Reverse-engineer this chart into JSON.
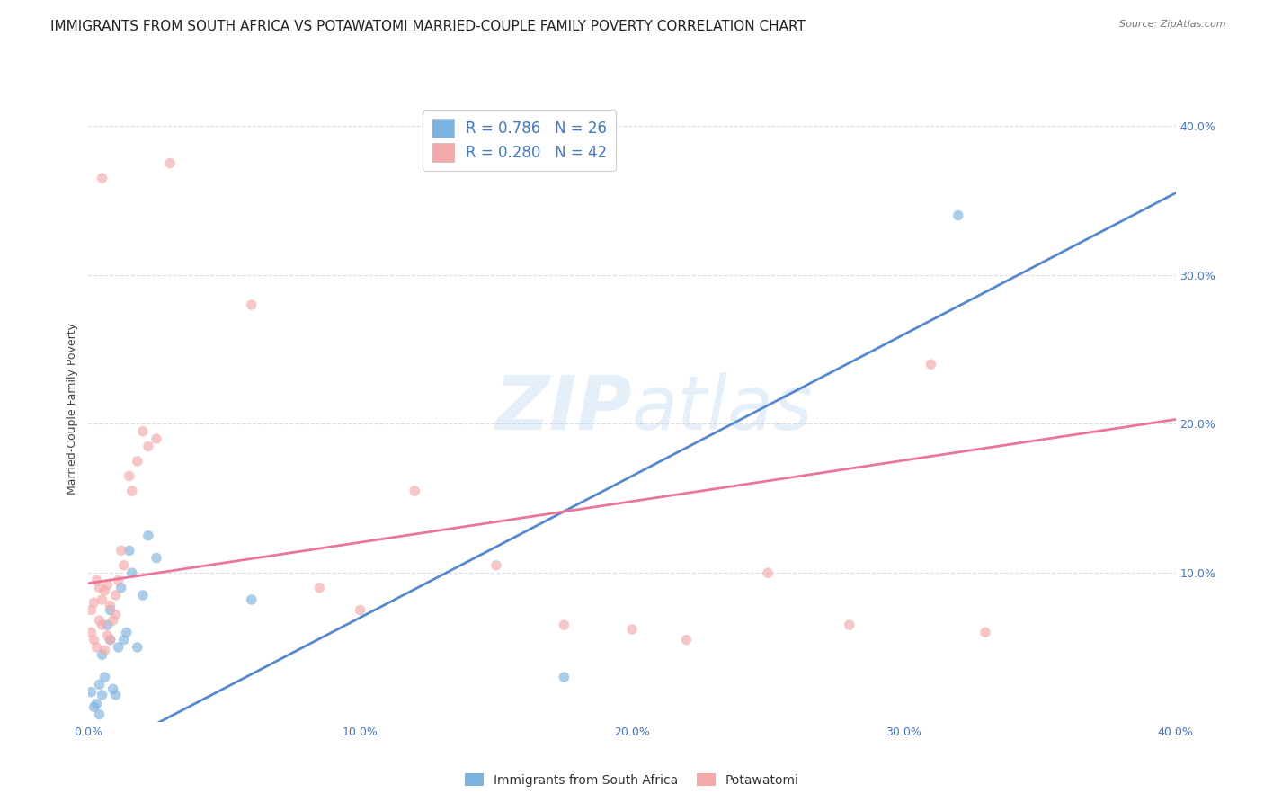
{
  "title": "IMMIGRANTS FROM SOUTH AFRICA VS POTAWATOMI MARRIED-COUPLE FAMILY POVERTY CORRELATION CHART",
  "source": "Source: ZipAtlas.com",
  "ylabel": "Married-Couple Family Poverty",
  "xlim": [
    0.0,
    0.4
  ],
  "ylim": [
    0.0,
    0.42
  ],
  "xticks": [
    0.0,
    0.1,
    0.2,
    0.3,
    0.4
  ],
  "yticks": [
    0.1,
    0.2,
    0.3,
    0.4
  ],
  "xtick_labels": [
    "0.0%",
    "10.0%",
    "20.0%",
    "30.0%",
    "40.0%"
  ],
  "ytick_labels": [
    "10.0%",
    "20.0%",
    "30.0%",
    "40.0%"
  ],
  "blue_color": "#7EB3E0",
  "pink_color": "#F4AAAA",
  "blue_line_color": "#5588CC",
  "pink_line_color": "#E87799",
  "legend_text_color": "#4477BB",
  "watermark_zip": "ZIP",
  "watermark_atlas": "atlas",
  "blue_line_x": [
    0.0,
    0.4
  ],
  "blue_line_y": [
    -0.025,
    0.355
  ],
  "pink_line_x": [
    0.0,
    0.4
  ],
  "pink_line_y": [
    0.093,
    0.203
  ],
  "blue_scatter_x": [
    0.001,
    0.002,
    0.003,
    0.004,
    0.004,
    0.005,
    0.005,
    0.006,
    0.007,
    0.008,
    0.008,
    0.009,
    0.01,
    0.011,
    0.012,
    0.013,
    0.014,
    0.015,
    0.016,
    0.018,
    0.02,
    0.022,
    0.025,
    0.06,
    0.175,
    0.32
  ],
  "blue_scatter_y": [
    0.02,
    0.01,
    0.012,
    0.005,
    0.025,
    0.018,
    0.045,
    0.03,
    0.065,
    0.055,
    0.075,
    0.022,
    0.018,
    0.05,
    0.09,
    0.055,
    0.06,
    0.115,
    0.1,
    0.05,
    0.085,
    0.125,
    0.11,
    0.082,
    0.03,
    0.34
  ],
  "pink_scatter_x": [
    0.001,
    0.001,
    0.002,
    0.002,
    0.003,
    0.003,
    0.004,
    0.004,
    0.005,
    0.005,
    0.006,
    0.006,
    0.007,
    0.007,
    0.008,
    0.008,
    0.009,
    0.01,
    0.01,
    0.011,
    0.012,
    0.013,
    0.015,
    0.016,
    0.018,
    0.02,
    0.022,
    0.025,
    0.03,
    0.06,
    0.085,
    0.1,
    0.12,
    0.15,
    0.175,
    0.2,
    0.22,
    0.25,
    0.28,
    0.31,
    0.33,
    0.005
  ],
  "pink_scatter_y": [
    0.06,
    0.075,
    0.055,
    0.08,
    0.05,
    0.095,
    0.068,
    0.09,
    0.065,
    0.082,
    0.048,
    0.088,
    0.058,
    0.092,
    0.055,
    0.078,
    0.068,
    0.072,
    0.085,
    0.095,
    0.115,
    0.105,
    0.165,
    0.155,
    0.175,
    0.195,
    0.185,
    0.19,
    0.375,
    0.28,
    0.09,
    0.075,
    0.155,
    0.105,
    0.065,
    0.062,
    0.055,
    0.1,
    0.065,
    0.24,
    0.06,
    0.365
  ],
  "background_color": "#FFFFFF",
  "grid_color": "#DDDDDD",
  "title_fontsize": 11,
  "axis_label_fontsize": 9,
  "tick_label_fontsize": 9,
  "scatter_size": 70,
  "scatter_alpha": 0.65,
  "line_width": 2.0,
  "legend_entry_blue": "R = 0.786   N = 26",
  "legend_entry_pink": "R = 0.280   N = 42",
  "bottom_legend_blue": "Immigrants from South Africa",
  "bottom_legend_pink": "Potawatomi"
}
